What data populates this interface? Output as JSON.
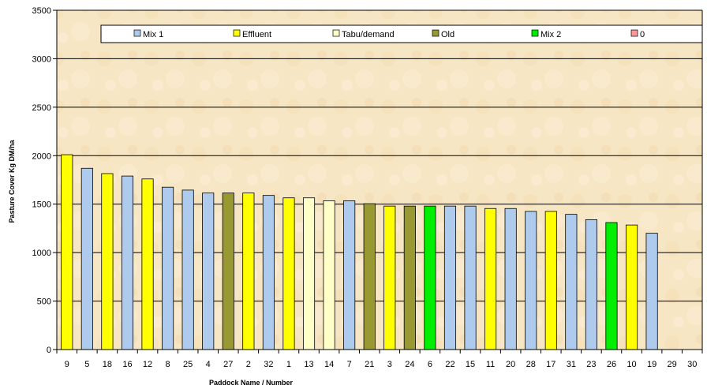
{
  "chart_data": {
    "type": "bar",
    "title": "",
    "xlabel": "Paddock Name / Number",
    "ylabel": "Pasture Cover Kg DM/ha",
    "ylim": [
      0,
      3500
    ],
    "yticks": [
      0,
      500,
      1000,
      1500,
      2000,
      2500,
      3000,
      3500
    ],
    "grid": true,
    "legend_position": "top",
    "background": "#f7e6c4",
    "categories": [
      "9",
      "5",
      "18",
      "16",
      "12",
      "8",
      "25",
      "4",
      "27",
      "2",
      "32",
      "1",
      "13",
      "14",
      "7",
      "21",
      "3",
      "24",
      "6",
      "22",
      "15",
      "11",
      "20",
      "28",
      "17",
      "31",
      "23",
      "26",
      "10",
      "19",
      "29",
      "30"
    ],
    "values": [
      2010,
      1870,
      1815,
      1790,
      1760,
      1675,
      1645,
      1615,
      1615,
      1615,
      1590,
      1565,
      1565,
      1535,
      1535,
      1505,
      1480,
      1480,
      1480,
      1480,
      1480,
      1455,
      1455,
      1425,
      1425,
      1395,
      1340,
      1310,
      1285,
      1200,
      0,
      0
    ],
    "groups": [
      "Effluent",
      "Mix 1",
      "Effluent",
      "Mix 1",
      "Effluent",
      "Mix 1",
      "Mix 1",
      "Mix 1",
      "Old",
      "Effluent",
      "Mix 1",
      "Effluent",
      "Tabu/demand",
      "Tabu/demand",
      "Mix 1",
      "Old",
      "Effluent",
      "Old",
      "Mix 2",
      "Mix 1",
      "Mix 1",
      "Effluent",
      "Mix 1",
      "Mix 1",
      "Effluent",
      "Mix 1",
      "Mix 1",
      "Mix 2",
      "Effluent",
      "Mix 1",
      "Mix 1",
      "Mix 1"
    ],
    "legend": [
      {
        "name": "Mix 1",
        "color": "#aecbee"
      },
      {
        "name": "Effluent",
        "color": "#ffff00"
      },
      {
        "name": "Tabu/demand",
        "color": "#ffffc8"
      },
      {
        "name": "Old",
        "color": "#999933"
      },
      {
        "name": "Mix 2",
        "color": "#00ee00"
      },
      {
        "name": "0",
        "color": "#ff9999"
      }
    ]
  }
}
